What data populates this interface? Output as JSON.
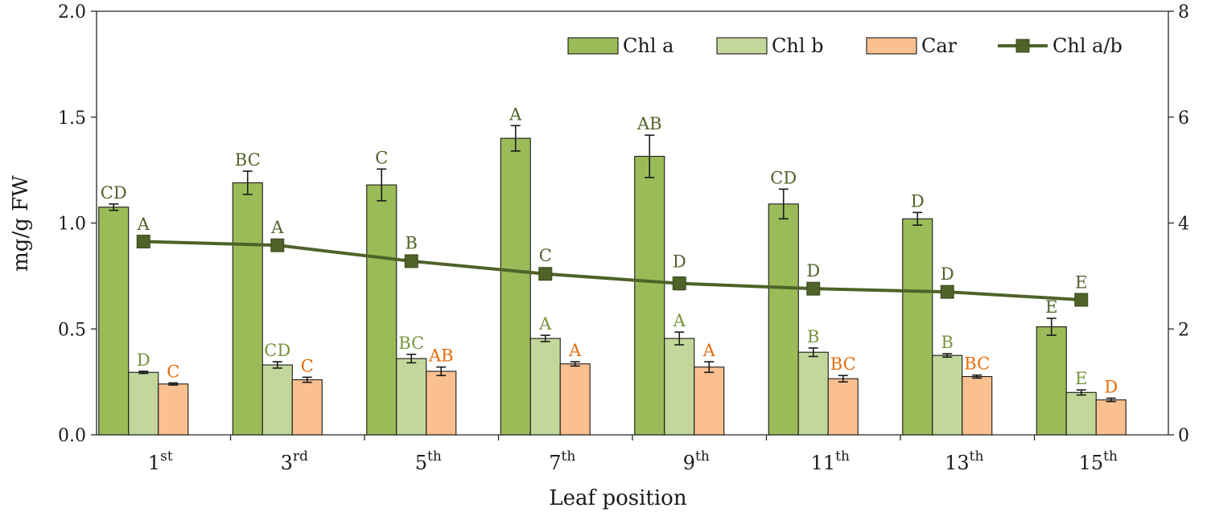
{
  "chart_data": {
    "type": "bar",
    "xlabel": "Leaf position",
    "ylabel": "mg/g FW",
    "ylim": [
      0,
      2.0
    ],
    "y2lim": [
      0,
      8
    ],
    "yticks": [
      "0.0",
      "0.5",
      "1.0",
      "1.5",
      "2.0"
    ],
    "y2ticks": [
      "0",
      "2",
      "4",
      "6",
      "8"
    ],
    "categories": [
      {
        "base": "1",
        "sup": "st"
      },
      {
        "base": "3",
        "sup": "rd"
      },
      {
        "base": "5",
        "sup": "th"
      },
      {
        "base": "7",
        "sup": "th"
      },
      {
        "base": "9",
        "sup": "th"
      },
      {
        "base": "11",
        "sup": "th"
      },
      {
        "base": "13",
        "sup": "th"
      },
      {
        "base": "15",
        "sup": "th"
      }
    ],
    "series": [
      {
        "name": "Chl a",
        "type": "bar",
        "axis": "left",
        "color": "#9bbb59",
        "label_color": "#4f6228",
        "values": [
          1.075,
          1.19,
          1.18,
          1.4,
          1.315,
          1.09,
          1.02,
          0.51
        ],
        "errors": [
          0.015,
          0.055,
          0.075,
          0.06,
          0.1,
          0.07,
          0.03,
          0.04
        ],
        "letters": [
          "CD",
          "BC",
          "C",
          "A",
          "AB",
          "CD",
          "D",
          "E"
        ]
      },
      {
        "name": "Chl b",
        "type": "bar",
        "axis": "left",
        "color": "#c4d79b",
        "label_color": "#77933c",
        "values": [
          0.295,
          0.33,
          0.36,
          0.455,
          0.455,
          0.39,
          0.375,
          0.2
        ],
        "errors": [
          0.005,
          0.015,
          0.02,
          0.015,
          0.03,
          0.02,
          0.008,
          0.012
        ],
        "letters": [
          "D",
          "CD",
          "BC",
          "A",
          "A",
          "B",
          "B",
          "E"
        ]
      },
      {
        "name": "Car",
        "type": "bar",
        "axis": "left",
        "color": "#fac090",
        "label_color": "#e46c0a",
        "values": [
          0.24,
          0.26,
          0.3,
          0.335,
          0.32,
          0.265,
          0.275,
          0.165
        ],
        "errors": [
          0.005,
          0.012,
          0.02,
          0.01,
          0.025,
          0.015,
          0.007,
          0.008
        ],
        "letters": [
          "C",
          "C",
          "AB",
          "A",
          "A",
          "BC",
          "BC",
          "D"
        ]
      },
      {
        "name": "Chl a/b",
        "type": "line",
        "axis": "right",
        "color": "#4f6228",
        "label_color": "#4f6228",
        "values": [
          3.65,
          3.58,
          3.28,
          3.04,
          2.86,
          2.76,
          2.7,
          2.55
        ],
        "errors": [
          0.04,
          0.05,
          0.05,
          0.06,
          0.12,
          0.05,
          0.05,
          0.04
        ],
        "letters": [
          "A",
          "A",
          "B",
          "C",
          "D",
          "D",
          "D",
          "E"
        ]
      }
    ],
    "legend_position": "top-right"
  }
}
